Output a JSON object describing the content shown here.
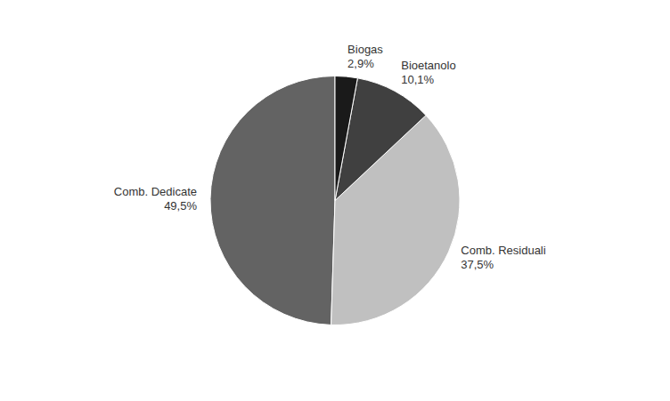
{
  "chart_data": {
    "type": "pie",
    "categories": [
      "Comb. Dedicate",
      "Comb. Residuali",
      "Bioetanolo",
      "Biogas"
    ],
    "values": [
      49.5,
      37.5,
      10.1,
      2.9
    ],
    "value_labels": [
      "49,5%",
      "37,5%",
      "10,1%",
      "2,9%"
    ],
    "colors": [
      "#636363",
      "#c0c0c0",
      "#404040",
      "#1a1a1a"
    ],
    "data_labels": true
  }
}
